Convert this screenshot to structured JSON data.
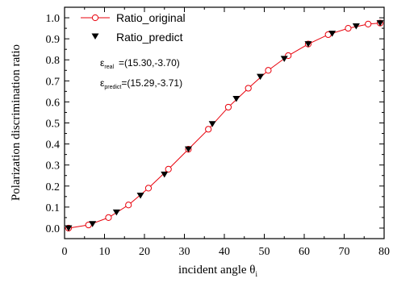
{
  "chart_data": {
    "type": "line",
    "xlabel": "incident angle  θ",
    "xlabel_sub": "i",
    "ylabel": "Polarization discrimination ratio",
    "xlim": [
      0,
      80
    ],
    "ylim": [
      -0.05,
      1.05
    ],
    "x_ticks": [
      0,
      10,
      20,
      30,
      40,
      50,
      60,
      70,
      80
    ],
    "y_ticks": [
      0.0,
      0.1,
      0.2,
      0.3,
      0.4,
      0.5,
      0.6,
      0.7,
      0.8,
      0.9,
      1.0
    ],
    "y_tick_labels": [
      "0.0",
      "0.1",
      "0.2",
      "0.3",
      "0.4",
      "0.5",
      "0.6",
      "0.7",
      "0.8",
      "0.9",
      "1.0"
    ],
    "legend_position": "top-left",
    "series": [
      {
        "name": "Ratio_original",
        "marker": "open-circle",
        "color": "#e8000b",
        "x": [
          1,
          6,
          11,
          16,
          21,
          26,
          31,
          36,
          41,
          46,
          51,
          56,
          61,
          66,
          71,
          76,
          79
        ],
        "values": [
          0.0,
          0.015,
          0.05,
          0.11,
          0.19,
          0.28,
          0.375,
          0.47,
          0.575,
          0.665,
          0.75,
          0.82,
          0.875,
          0.92,
          0.95,
          0.97,
          0.975
        ]
      },
      {
        "name": "Ratio_predict",
        "marker": "filled-down-triangle",
        "color": "#000000",
        "x": [
          1,
          7,
          13,
          19,
          25,
          31,
          37,
          43,
          49,
          55,
          61,
          67,
          73,
          79
        ],
        "values": [
          0.0,
          0.02,
          0.075,
          0.155,
          0.255,
          0.375,
          0.495,
          0.615,
          0.72,
          0.805,
          0.875,
          0.925,
          0.96,
          0.975
        ]
      }
    ],
    "annotations": [
      {
        "symbol": "ε",
        "subscript": "real",
        "text": "=(15.30,-3.70)"
      },
      {
        "symbol": "ε",
        "subscript": "predict",
        "text": "=(15.29,-3.71)"
      }
    ]
  }
}
